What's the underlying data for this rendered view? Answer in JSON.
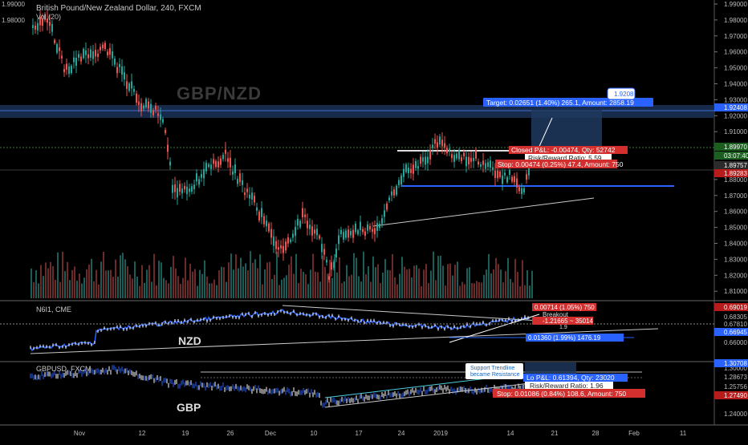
{
  "header": {
    "title": "British Pound/New Zealand Dollar, 240, FXCM",
    "vol_label": "Vol (20)"
  },
  "watermark": "GBP/NZD",
  "price_axis_main": {
    "ticks": [
      "1.99000",
      "1.98000",
      "1.97000",
      "1.96000",
      "1.95000",
      "1.94000",
      "1.93000",
      "1.92000",
      "1.91000",
      "1.90000",
      "1.89000",
      "1.88000",
      "1.87000",
      "1.86000",
      "1.85000",
      "1.84000",
      "1.83000",
      "1.82000",
      "1.81000"
    ],
    "markers": [
      {
        "label": "1.92408",
        "color": "#2962ff"
      },
      {
        "label": "1.89970",
        "color": "#1b5e20"
      },
      {
        "label": "03:07:40",
        "color": "#1b5e20"
      },
      {
        "label": "1.89757",
        "color": "#2b2b2b"
      },
      {
        "label": "1.89283",
        "color": "#b71c1c"
      }
    ]
  },
  "price_axis_nzd": {
    "ticks": [
      "0.68305",
      "0.67810",
      "0.66000"
    ],
    "markers": [
      {
        "label": "0.69019",
        "color": "#b71c1c"
      },
      {
        "label": "0.66945",
        "color": "#2962ff"
      }
    ]
  },
  "price_axis_gbp": {
    "ticks": [
      "1.30000",
      "1.28673",
      "1.25756",
      "1.24000"
    ],
    "markers": [
      {
        "label": "1.30708",
        "color": "#2962ff"
      },
      {
        "label": "1.27490",
        "color": "#b71c1c"
      }
    ]
  },
  "time_axis": [
    "Nov",
    "12",
    "19",
    "26",
    "Dec",
    "10",
    "17",
    "24",
    "2019",
    "14",
    "21",
    "28",
    "Feb",
    "11"
  ],
  "main_annotations": {
    "target": "Target: 0.02651 (1.40%) 265.1, Amount: 2858.19",
    "entry_bubble": "1.9208",
    "closed_pl": "Closed P&L: -0.00474, Qty: 52742",
    "risk_reward": "Risk/Reward Ratio: 5.59",
    "stop": "Stop: 0.00474 (0.25%) 47.4, Amount: 750"
  },
  "nzd_pane": {
    "title": "N6I1, CME",
    "label": "NZD",
    "target_box": "0.00714 (1.05%) 750",
    "breakout": "Breakout",
    "measure": "-1.21665 ~ 35014",
    "measure2": "1.9",
    "bottom_box": "0.01360 (1.99%) 1476.19"
  },
  "gbp_pane": {
    "title": "GBPUSD, FXCM",
    "label": "GBP",
    "callout_line1": "Support Trendline",
    "callout_line2": "became Resistance",
    "pl": "Lo P&L: 0.61394, Qty: 23020",
    "risk_reward": "Risk/Reward Ratio: 1.96",
    "stop": "Stop: 0.01086 (0.84%) 108.6, Amount: 750"
  },
  "colors": {
    "up_candle": "#26a69a",
    "down_candle": "#ef5350",
    "nzd_line": "#2962ff",
    "trendline": "#c8c8c8",
    "target_zone": "#1e3a5f",
    "stop_zone": "#5a1a1a"
  }
}
